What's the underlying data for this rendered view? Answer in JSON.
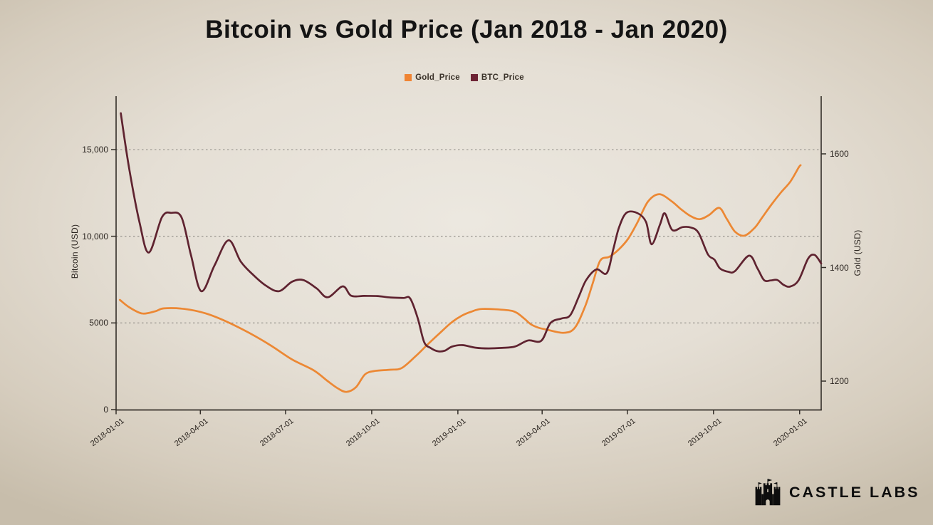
{
  "title": "Bitcoin vs Gold Price (Jan 2018 - Jan 2020)",
  "legend": [
    {
      "label": "Gold_Price",
      "color": "#F08433"
    },
    {
      "label": "BTC_Price",
      "color": "#6E2435"
    }
  ],
  "branding": {
    "name": "CASTLE LABS",
    "icon": "castle-icon"
  },
  "colors": {
    "gold_line": "#EC8834",
    "btc_line": "#5F2330",
    "axis": "#332E28",
    "grid": "#8F8C86",
    "tick_text": "#2B2520"
  },
  "chart_data": {
    "type": "line",
    "title": "Bitcoin vs Gold Price (Jan 2018 - Jan 2020)",
    "grid": "horizontal dashed lines at left-axis ticks 5000 / 10,000 / 15,000",
    "legend_position": "top-center",
    "x_axis": {
      "tick_labels": [
        "2018-01-01",
        "2018-04-01",
        "2018-07-01",
        "2018-10-01",
        "2019-01-01",
        "2019-04-01",
        "2019-07-01",
        "2019-10-01",
        "2020-01-01"
      ],
      "range": [
        "2018-01-01",
        "2020-01-24"
      ]
    },
    "y_left": {
      "label": "Bitcoin (USD)",
      "tick_labels": [
        "0",
        "5000",
        "10,000",
        "15,000"
      ],
      "tick_values": [
        0,
        5000,
        10000,
        15000
      ],
      "range": [
        0,
        18100
      ]
    },
    "y_right": {
      "label": "Gold (USD)",
      "tick_labels": [
        "1200",
        "1400",
        "1600"
      ],
      "tick_values": [
        1200,
        1400,
        1600
      ],
      "range": [
        1155,
        1610
      ]
    },
    "series": [
      {
        "name": "Gold_Price",
        "axis": "right",
        "color": "#EC8834",
        "points": [
          [
            "2018-01-05",
            1343
          ],
          [
            "2018-01-15",
            1330
          ],
          [
            "2018-01-29",
            1319
          ],
          [
            "2018-02-12",
            1323
          ],
          [
            "2018-02-21",
            1328
          ],
          [
            "2018-03-15",
            1327
          ],
          [
            "2018-04-07",
            1319
          ],
          [
            "2018-04-30",
            1304
          ],
          [
            "2018-05-23",
            1285
          ],
          [
            "2018-06-15",
            1263
          ],
          [
            "2018-07-08",
            1238
          ],
          [
            "2018-07-31",
            1219
          ],
          [
            "2018-08-15",
            1200
          ],
          [
            "2018-08-26",
            1187
          ],
          [
            "2018-09-04",
            1181
          ],
          [
            "2018-09-14",
            1189
          ],
          [
            "2018-09-24",
            1212
          ],
          [
            "2018-10-05",
            1218
          ],
          [
            "2018-10-21",
            1220
          ],
          [
            "2018-11-02",
            1223
          ],
          [
            "2018-11-17",
            1244
          ],
          [
            "2018-11-30",
            1265
          ],
          [
            "2018-12-13",
            1285
          ],
          [
            "2018-12-25",
            1303
          ],
          [
            "2019-01-05",
            1315
          ],
          [
            "2019-01-15",
            1322
          ],
          [
            "2019-01-27",
            1327
          ],
          [
            "2019-02-22",
            1325
          ],
          [
            "2019-03-04",
            1321
          ],
          [
            "2019-03-13",
            1310
          ],
          [
            "2019-03-20",
            1300
          ],
          [
            "2019-03-28",
            1294
          ],
          [
            "2019-04-05",
            1291
          ],
          [
            "2019-04-24",
            1285
          ],
          [
            "2019-05-06",
            1294
          ],
          [
            "2019-05-17",
            1332
          ],
          [
            "2019-05-25",
            1372
          ],
          [
            "2019-06-02",
            1412
          ],
          [
            "2019-06-12",
            1419
          ],
          [
            "2019-06-22",
            1432
          ],
          [
            "2019-07-02",
            1451
          ],
          [
            "2019-07-12",
            1480
          ],
          [
            "2019-07-23",
            1516
          ],
          [
            "2019-08-04",
            1529
          ],
          [
            "2019-08-17",
            1517
          ],
          [
            "2019-08-27",
            1503
          ],
          [
            "2019-09-06",
            1491
          ],
          [
            "2019-09-16",
            1485
          ],
          [
            "2019-09-26",
            1492
          ],
          [
            "2019-10-07",
            1505
          ],
          [
            "2019-10-15",
            1486
          ],
          [
            "2019-10-24",
            1463
          ],
          [
            "2019-11-03",
            1456
          ],
          [
            "2019-11-14",
            1470
          ],
          [
            "2019-11-22",
            1488
          ],
          [
            "2019-12-02",
            1511
          ],
          [
            "2019-12-12",
            1532
          ],
          [
            "2019-12-22",
            1551
          ],
          [
            "2019-12-31",
            1576
          ],
          [
            "2020-01-02",
            1580
          ]
        ]
      },
      {
        "name": "BTC_Price",
        "axis": "left",
        "color": "#5F2330",
        "points": [
          [
            "2018-01-06",
            17100
          ],
          [
            "2018-01-15",
            13900
          ],
          [
            "2018-01-26",
            10800
          ],
          [
            "2018-02-05",
            9060
          ],
          [
            "2018-02-19",
            11100
          ],
          [
            "2018-03-01",
            11350
          ],
          [
            "2018-03-12",
            11080
          ],
          [
            "2018-03-22",
            8900
          ],
          [
            "2018-04-02",
            6830
          ],
          [
            "2018-04-16",
            8300
          ],
          [
            "2018-05-01",
            9770
          ],
          [
            "2018-05-14",
            8550
          ],
          [
            "2018-05-27",
            7790
          ],
          [
            "2018-06-10",
            7150
          ],
          [
            "2018-06-24",
            6830
          ],
          [
            "2018-07-08",
            7380
          ],
          [
            "2018-07-20",
            7470
          ],
          [
            "2018-08-03",
            7000
          ],
          [
            "2018-08-15",
            6480
          ],
          [
            "2018-08-31",
            7110
          ],
          [
            "2018-09-09",
            6570
          ],
          [
            "2018-09-23",
            6560
          ],
          [
            "2018-10-07",
            6550
          ],
          [
            "2018-10-21",
            6470
          ],
          [
            "2018-11-04",
            6440
          ],
          [
            "2018-11-11",
            6420
          ],
          [
            "2018-11-19",
            5300
          ],
          [
            "2018-11-26",
            3900
          ],
          [
            "2018-12-03",
            3550
          ],
          [
            "2018-12-11",
            3360
          ],
          [
            "2018-12-18",
            3400
          ],
          [
            "2018-12-26",
            3640
          ],
          [
            "2019-01-06",
            3720
          ],
          [
            "2019-01-20",
            3570
          ],
          [
            "2019-02-03",
            3530
          ],
          [
            "2019-02-17",
            3560
          ],
          [
            "2019-03-03",
            3640
          ],
          [
            "2019-03-17",
            3990
          ],
          [
            "2019-03-31",
            3970
          ],
          [
            "2019-04-10",
            5000
          ],
          [
            "2019-04-22",
            5260
          ],
          [
            "2019-05-01",
            5440
          ],
          [
            "2019-05-10",
            6500
          ],
          [
            "2019-05-18",
            7470
          ],
          [
            "2019-05-29",
            8090
          ],
          [
            "2019-06-09",
            7870
          ],
          [
            "2019-06-16",
            9250
          ],
          [
            "2019-06-22",
            10490
          ],
          [
            "2019-06-30",
            11350
          ],
          [
            "2019-07-12",
            11330
          ],
          [
            "2019-07-21",
            10820
          ],
          [
            "2019-07-27",
            9540
          ],
          [
            "2019-08-05",
            10700
          ],
          [
            "2019-08-10",
            11320
          ],
          [
            "2019-08-18",
            10360
          ],
          [
            "2019-08-29",
            10530
          ],
          [
            "2019-09-07",
            10500
          ],
          [
            "2019-09-15",
            10200
          ],
          [
            "2019-09-25",
            8960
          ],
          [
            "2019-10-02",
            8650
          ],
          [
            "2019-10-08",
            8140
          ],
          [
            "2019-10-17",
            7950
          ],
          [
            "2019-10-24",
            7990
          ],
          [
            "2019-11-08",
            8880
          ],
          [
            "2019-11-17",
            8140
          ],
          [
            "2019-11-24",
            7470
          ],
          [
            "2019-12-01",
            7450
          ],
          [
            "2019-12-08",
            7480
          ],
          [
            "2019-12-15",
            7190
          ],
          [
            "2019-12-22",
            7100
          ],
          [
            "2019-12-31",
            7470
          ],
          [
            "2020-01-10",
            8710
          ],
          [
            "2020-01-17",
            8920
          ],
          [
            "2020-01-24",
            8430
          ]
        ]
      }
    ]
  }
}
